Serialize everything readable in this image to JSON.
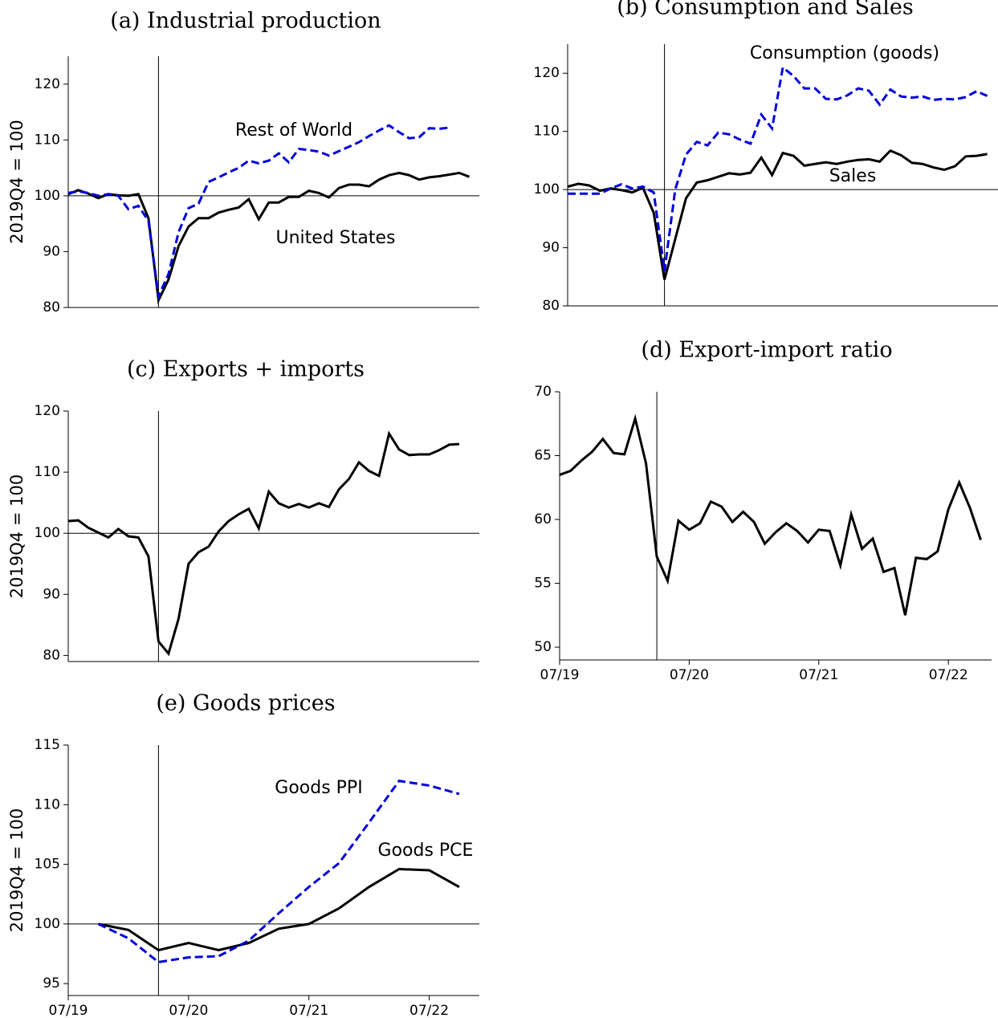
{
  "chart_data": [
    {
      "type": "line",
      "title": "(a) Industrial production",
      "ylabel": "2019Q4 = 100",
      "x": [
        "2019-07",
        "2019-08",
        "2019-09",
        "2019-10",
        "2019-11",
        "2019-12",
        "2020-01",
        "2020-02",
        "2020-03",
        "2020-04",
        "2020-05",
        "2020-06",
        "2020-07",
        "2020-08",
        "2020-09",
        "2020-10",
        "2020-11",
        "2020-12",
        "2021-01",
        "2021-02",
        "2021-03",
        "2021-04",
        "2021-05",
        "2021-06",
        "2021-07",
        "2021-08",
        "2021-09",
        "2021-10",
        "2021-11",
        "2021-12",
        "2022-01",
        "2022-02",
        "2022-03",
        "2022-04",
        "2022-05",
        "2022-06",
        "2022-07",
        "2022-08",
        "2022-09",
        "2022-10",
        "2022-11"
      ],
      "series": [
        {
          "name": "United States",
          "color": "#000000",
          "dashed": false,
          "values": [
            100.3,
            101.0,
            100.4,
            99.6,
            100.3,
            100.1,
            100.0,
            100.3,
            96.0,
            81.3,
            85.0,
            91.0,
            94.5,
            96.0,
            96.0,
            97.0,
            97.5,
            97.9,
            99.4,
            95.8,
            98.8,
            98.8,
            99.8,
            99.8,
            100.9,
            100.5,
            99.7,
            101.4,
            102.0,
            102.0,
            101.7,
            102.9,
            103.7,
            104.1,
            103.7,
            102.9,
            103.3,
            103.5,
            103.8,
            104.1,
            103.4
          ]
        },
        {
          "name": "Rest of World",
          "color": "#0000dd",
          "dashed": true,
          "values": [
            100.5,
            100.8,
            100.5,
            100.0,
            100.3,
            100.0,
            97.6,
            98.2,
            95.5,
            82.0,
            86.0,
            93.5,
            97.8,
            98.6,
            102.5,
            103.3,
            104.2,
            105.0,
            106.3,
            105.8,
            106.3,
            107.6,
            106.0,
            108.4,
            108.2,
            107.9,
            107.2,
            108.0,
            108.8,
            109.6,
            110.7,
            111.7,
            112.6,
            111.4,
            110.3,
            110.5,
            112.1,
            112.0,
            112.2,
            null,
            null
          ]
        }
      ],
      "xlim": [
        "2019-07",
        "2022-12"
      ],
      "ylim": [
        80,
        125
      ],
      "yticks": [
        80,
        90,
        100,
        110,
        120
      ],
      "hline": 100,
      "vline": "2020-04"
    },
    {
      "type": "line",
      "title": "(b) Consumption and Sales",
      "x": [
        "2019-07",
        "2019-08",
        "2019-09",
        "2019-10",
        "2019-11",
        "2019-12",
        "2020-01",
        "2020-02",
        "2020-03",
        "2020-04",
        "2020-05",
        "2020-06",
        "2020-07",
        "2020-08",
        "2020-09",
        "2020-10",
        "2020-11",
        "2020-12",
        "2021-01",
        "2021-02",
        "2021-03",
        "2021-04",
        "2021-05",
        "2021-06",
        "2021-07",
        "2021-08",
        "2021-09",
        "2021-10",
        "2021-11",
        "2021-12",
        "2022-01",
        "2022-02",
        "2022-03",
        "2022-04",
        "2022-05",
        "2022-06",
        "2022-07",
        "2022-08",
        "2022-09",
        "2022-10"
      ],
      "series": [
        {
          "name": "Sales",
          "color": "#000000",
          "dashed": false,
          "values": [
            100.5,
            101.0,
            100.7,
            99.8,
            100.2,
            99.9,
            99.5,
            100.3,
            96.0,
            84.5,
            91.5,
            98.5,
            101.2,
            101.6,
            102.2,
            102.8,
            102.6,
            102.9,
            105.5,
            102.5,
            106.3,
            105.8,
            104.1,
            104.4,
            104.7,
            104.4,
            104.8,
            105.1,
            105.2,
            104.8,
            106.7,
            105.9,
            104.6,
            104.4,
            103.8,
            103.4,
            104.0,
            105.7,
            105.8,
            106.1
          ]
        },
        {
          "name": "Consumption (goods)",
          "color": "#0000dd",
          "dashed": true,
          "values": [
            99.3,
            99.3,
            99.3,
            99.3,
            100.2,
            100.9,
            100.2,
            100.5,
            99.5,
            86.0,
            100.0,
            106.0,
            108.2,
            107.6,
            109.8,
            109.5,
            108.6,
            107.9,
            112.9,
            110.5,
            121.0,
            119.5,
            117.4,
            117.4,
            115.6,
            115.5,
            116.2,
            117.4,
            117.0,
            114.6,
            117.2,
            116.0,
            115.8,
            116.0,
            115.4,
            115.6,
            115.5,
            115.9,
            116.9,
            116.1
          ]
        }
      ],
      "xlim": [
        "2019-07",
        "2022-11"
      ],
      "ylim": [
        80,
        125
      ],
      "yticks": [
        80,
        90,
        100,
        110,
        120
      ],
      "hline": 100,
      "vline": "2020-04"
    },
    {
      "type": "line",
      "title": "(c) Exports + imports",
      "ylabel": "2019Q4 = 100",
      "x": [
        "2019-07",
        "2019-08",
        "2019-09",
        "2019-10",
        "2019-11",
        "2019-12",
        "2020-01",
        "2020-02",
        "2020-03",
        "2020-04",
        "2020-05",
        "2020-06",
        "2020-07",
        "2020-08",
        "2020-09",
        "2020-10",
        "2020-11",
        "2020-12",
        "2021-01",
        "2021-02",
        "2021-03",
        "2021-04",
        "2021-05",
        "2021-06",
        "2021-07",
        "2021-08",
        "2021-09",
        "2021-10",
        "2021-11",
        "2021-12",
        "2022-01",
        "2022-02",
        "2022-03",
        "2022-04",
        "2022-05",
        "2022-06",
        "2022-07",
        "2022-08",
        "2022-09",
        "2022-10"
      ],
      "color": "#000000",
      "values": [
        102.0,
        102.1,
        100.9,
        100.1,
        99.3,
        100.7,
        99.5,
        99.3,
        96.2,
        82.3,
        80.3,
        86.0,
        95.0,
        96.9,
        97.8,
        100.3,
        102.0,
        103.1,
        104.0,
        100.8,
        106.8,
        104.9,
        104.2,
        104.8,
        104.2,
        104.9,
        104.3,
        107.2,
        108.9,
        111.6,
        110.2,
        109.4,
        116.3,
        113.7,
        112.8,
        112.9,
        112.9,
        113.6,
        114.5,
        114.6
      ],
      "xlim": [
        "2019-07",
        "2022-12"
      ],
      "ylim": [
        79,
        120
      ],
      "yticks": [
        80,
        90,
        100,
        110,
        120
      ],
      "hline": 100,
      "vline": "2020-04"
    },
    {
      "type": "line",
      "title": "(d) Export-import ratio",
      "x": [
        "2019-07",
        "2019-08",
        "2019-09",
        "2019-10",
        "2019-11",
        "2019-12",
        "2020-01",
        "2020-02",
        "2020-03",
        "2020-04",
        "2020-05",
        "2020-06",
        "2020-07",
        "2020-08",
        "2020-09",
        "2020-10",
        "2020-11",
        "2020-12",
        "2021-01",
        "2021-02",
        "2021-03",
        "2021-04",
        "2021-05",
        "2021-06",
        "2021-07",
        "2021-08",
        "2021-09",
        "2021-10",
        "2021-11",
        "2021-12",
        "2022-01",
        "2022-02",
        "2022-03",
        "2022-04",
        "2022-05",
        "2022-06",
        "2022-07",
        "2022-08",
        "2022-09",
        "2022-10"
      ],
      "color": "#000000",
      "values": [
        63.5,
        63.8,
        64.6,
        65.3,
        66.3,
        65.2,
        65.1,
        67.9,
        64.4,
        57.1,
        55.2,
        59.9,
        59.2,
        59.7,
        61.4,
        61.0,
        59.8,
        60.6,
        59.8,
        58.1,
        59.0,
        59.7,
        59.1,
        58.2,
        59.2,
        59.1,
        56.4,
        60.4,
        57.7,
        58.5,
        55.9,
        56.2,
        52.5,
        57.0,
        56.9,
        57.5,
        60.8,
        62.9,
        60.9,
        58.4
      ],
      "xlim": [
        "2019-07",
        "2022-11"
      ],
      "ylim": [
        49,
        70
      ],
      "yticks": [
        50,
        55,
        60,
        65,
        70
      ],
      "vline": "2020-04",
      "xticks": [
        {
          "value": "2019-07",
          "label": "07/19"
        },
        {
          "value": "2020-07",
          "label": "07/20"
        },
        {
          "value": "2021-07",
          "label": "07/21"
        },
        {
          "value": "2022-07",
          "label": "07/22"
        }
      ]
    },
    {
      "type": "line",
      "title": "(e) Goods prices",
      "ylabel": "2019Q4 = 100",
      "x": [
        "2019-10",
        "2020-01",
        "2020-04",
        "2020-07",
        "2020-10",
        "2021-01",
        "2021-04",
        "2021-07",
        "2021-10",
        "2022-01",
        "2022-04",
        "2022-07",
        "2022-10"
      ],
      "series": [
        {
          "name": "Goods PCE",
          "color": "#000000",
          "dashed": false,
          "values": [
            100.0,
            99.5,
            97.8,
            98.4,
            97.8,
            98.4,
            99.6,
            100.0,
            101.3,
            103.1,
            104.6,
            104.5,
            103.1
          ]
        },
        {
          "name": "Goods PPI",
          "color": "#0000dd",
          "dashed": true,
          "values": [
            100.0,
            98.8,
            96.8,
            97.2,
            97.3,
            98.6,
            100.9,
            103.1,
            105.1,
            108.5,
            112.0,
            111.6,
            110.9
          ]
        }
      ],
      "xlim": [
        "2019-07",
        "2022-12"
      ],
      "ylim": [
        94,
        115
      ],
      "yticks": [
        95,
        100,
        105,
        110,
        115
      ],
      "hline": 100,
      "vline": "2020-04",
      "xticks": [
        {
          "value": "2019-07",
          "label": "07/19"
        },
        {
          "value": "2020-07",
          "label": "07/20"
        },
        {
          "value": "2021-07",
          "label": "07/21"
        },
        {
          "value": "2022-07",
          "label": "07/22"
        }
      ]
    }
  ]
}
